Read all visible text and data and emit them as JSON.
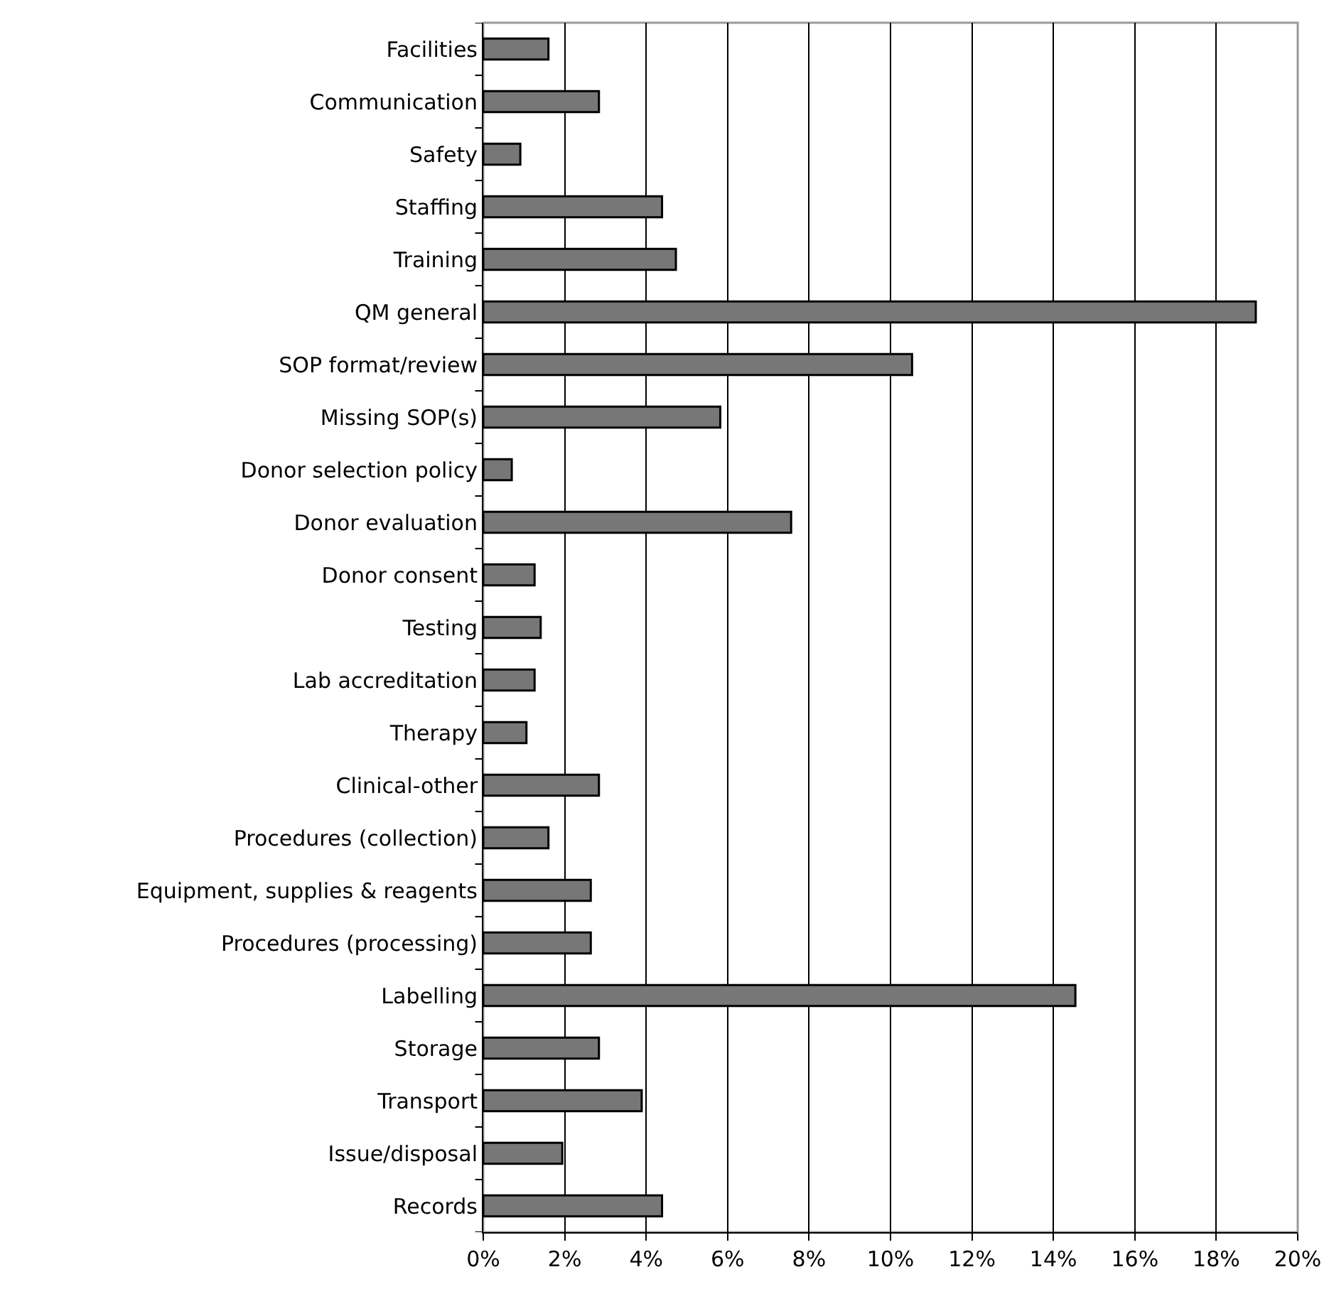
{
  "chart_data": {
    "type": "bar",
    "orientation": "horizontal",
    "categories": [
      "Facilities",
      "Communication",
      "Safety",
      "Staffing",
      "Training",
      "QM general",
      "SOP format/review",
      "Missing SOP(s)",
      "Donor selection policy",
      "Donor evaluation",
      "Donor consent",
      "Testing",
      "Lab accreditation",
      "Therapy",
      "Clinical-other",
      "Procedures (collection)",
      "Equipment, supplies & reagents",
      "Procedures (processing)",
      "Labelling",
      "Storage",
      "Transport",
      "Issue/disposal",
      "Records"
    ],
    "values": [
      1.6,
      2.84,
      0.91,
      4.39,
      4.73,
      18.97,
      10.53,
      5.82,
      0.7,
      7.56,
      1.26,
      1.41,
      1.26,
      1.06,
      2.84,
      1.6,
      2.64,
      2.64,
      14.54,
      2.84,
      3.89,
      1.94,
      4.39
    ],
    "color": "#777777",
    "xlim": [
      0,
      20
    ],
    "xticks": [
      {
        "value": 0,
        "label": "0%"
      },
      {
        "value": 2,
        "label": "2%"
      },
      {
        "value": 4,
        "label": "4%"
      },
      {
        "value": 6,
        "label": "6%"
      },
      {
        "value": 8,
        "label": "8%"
      },
      {
        "value": 10,
        "label": "10%"
      },
      {
        "value": 12,
        "label": "12%"
      },
      {
        "value": 14,
        "label": "14%"
      },
      {
        "value": 16,
        "label": "16%"
      },
      {
        "value": 18,
        "label": "18%"
      },
      {
        "value": 20,
        "label": "20%"
      }
    ],
    "grid": "x"
  }
}
